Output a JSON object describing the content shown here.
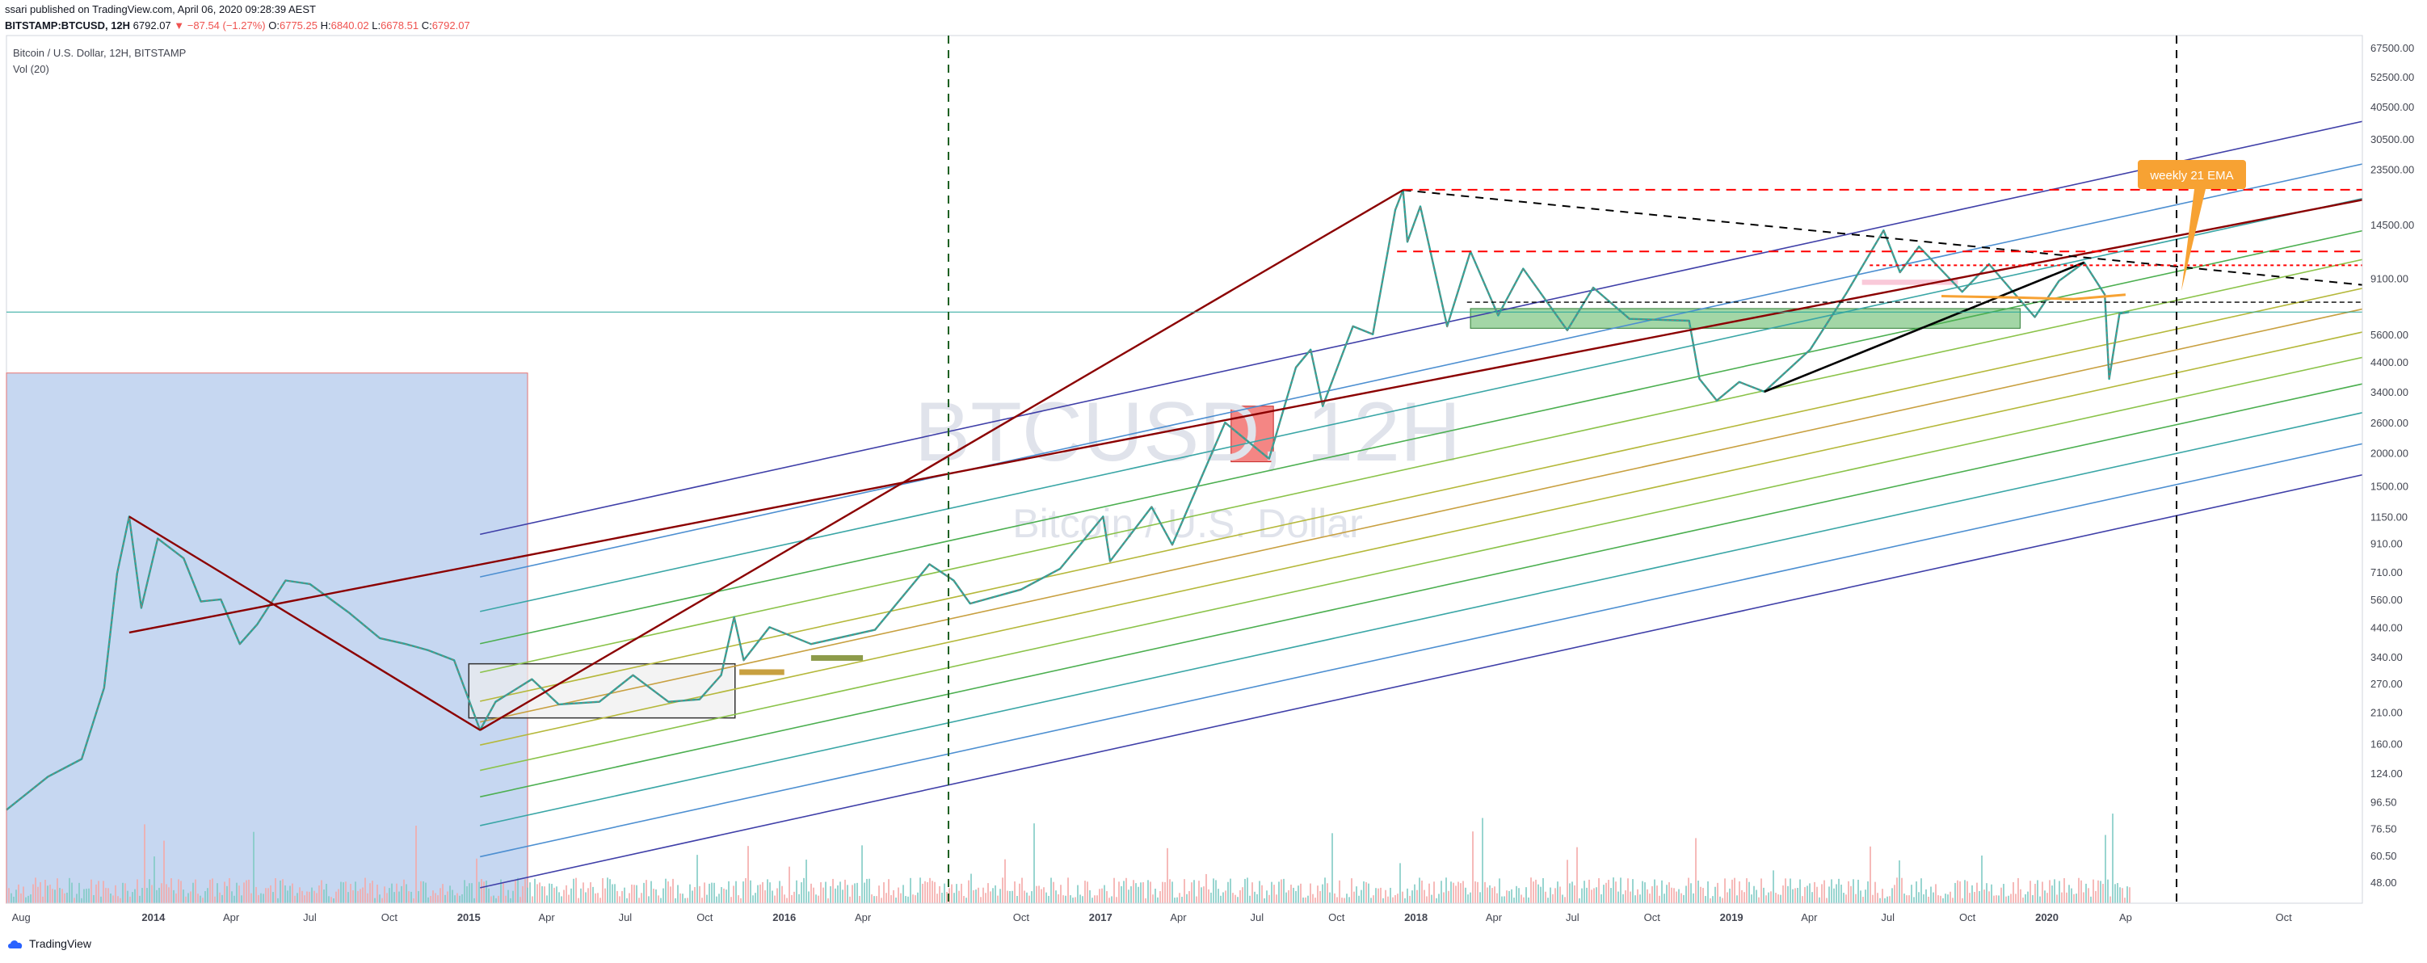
{
  "header": {
    "publish_line": "ssari published on TradingView.com, April 06, 2020 09:28:39 AEST",
    "symbol": "BITSTAMP:BTCUSD, 12H",
    "last": "6792.07",
    "change": "▼ −87.54 (−1.27%)",
    "open_label": "O:",
    "open": "6775.25",
    "high_label": "H:",
    "high": "6840.02",
    "low_label": "L:",
    "low": "6678.51",
    "close_label": "C:",
    "close": "6792.07"
  },
  "legend": {
    "title": "Bitcoin / U.S. Dollar, 12H, BITSTAMP",
    "volume": "Vol (20)"
  },
  "watermark": {
    "symbol": "BTCUSD, 12H",
    "name": "Bitcoin / U.S. Dollar"
  },
  "annotations": {
    "ema_label": "weekly 21 EMA"
  },
  "footer": {
    "brand": "TradingView"
  },
  "colors": {
    "up": "#26a69a",
    "down": "#ef5350",
    "resistance": "#ff0000",
    "trend": "#8b0000",
    "channel_outer": "#3f3fa8",
    "ema": "#f7a233",
    "support_zone": "#4caf50",
    "bear_zone": "#90caf9"
  },
  "chart_data": {
    "type": "candlestick",
    "title": "",
    "y_scale": "log",
    "ylim": [
      40,
      75000
    ],
    "xlim": [
      "2013-07-15",
      "2020-12-31"
    ],
    "y_ticks": [
      48.0,
      60.5,
      76.5,
      96.5,
      124.0,
      160.0,
      210.0,
      270.0,
      340.0,
      440.0,
      560.0,
      710.0,
      910.0,
      1150.0,
      1500.0,
      2000.0,
      2600.0,
      3400.0,
      4400.0,
      5600.0,
      9100.0,
      14500.0,
      23500.0,
      30500.0,
      40500.0,
      52500.0,
      67500.0
    ],
    "y_tick_labels": [
      "48.00",
      "60.50",
      "76.50",
      "96.50",
      "124.00",
      "160.00",
      "210.00",
      "270.00",
      "340.00",
      "440.00",
      "560.00",
      "710.00",
      "910.00",
      "1150.00",
      "1500.00",
      "2000.00",
      "2600.00",
      "3400.00",
      "4400.00",
      "5600.00",
      "9100.00",
      "14500.00",
      "23500.00",
      "30500.00",
      "40500.00",
      "52500.00",
      "67500.00"
    ],
    "x_ticks": [
      {
        "d": "2013-08-01",
        "label": "Aug",
        "bold": false
      },
      {
        "d": "2014-01-01",
        "label": "2014",
        "bold": true
      },
      {
        "d": "2014-04-01",
        "label": "Apr",
        "bold": false
      },
      {
        "d": "2014-07-01",
        "label": "Jul",
        "bold": false
      },
      {
        "d": "2014-10-01",
        "label": "Oct",
        "bold": false
      },
      {
        "d": "2015-01-01",
        "label": "2015",
        "bold": true
      },
      {
        "d": "2015-04-01",
        "label": "Apr",
        "bold": false
      },
      {
        "d": "2015-07-01",
        "label": "Jul",
        "bold": false
      },
      {
        "d": "2015-10-01",
        "label": "Oct",
        "bold": false
      },
      {
        "d": "2016-01-01",
        "label": "2016",
        "bold": true
      },
      {
        "d": "2016-04-01",
        "label": "Apr",
        "bold": false
      },
      {
        "d": "2016-10-01",
        "label": "Oct",
        "bold": false
      },
      {
        "d": "2017-01-01",
        "label": "2017",
        "bold": true
      },
      {
        "d": "2017-04-01",
        "label": "Apr",
        "bold": false
      },
      {
        "d": "2017-07-01",
        "label": "Jul",
        "bold": false
      },
      {
        "d": "2017-10-01",
        "label": "Oct",
        "bold": false
      },
      {
        "d": "2018-01-01",
        "label": "2018",
        "bold": true
      },
      {
        "d": "2018-04-01",
        "label": "Apr",
        "bold": false
      },
      {
        "d": "2018-07-01",
        "label": "Jul",
        "bold": false
      },
      {
        "d": "2018-10-01",
        "label": "Oct",
        "bold": false
      },
      {
        "d": "2019-01-01",
        "label": "2019",
        "bold": true
      },
      {
        "d": "2019-04-01",
        "label": "Apr",
        "bold": false
      },
      {
        "d": "2019-07-01",
        "label": "Jul",
        "bold": false
      },
      {
        "d": "2019-10-01",
        "label": "Oct",
        "bold": false
      },
      {
        "d": "2020-01-01",
        "label": "2020",
        "bold": true
      },
      {
        "d": "2020-04-01",
        "label": "Ap",
        "bold": false
      },
      {
        "d": "2020-10-01",
        "label": "Oct",
        "bold": false
      }
    ],
    "price_path": [
      [
        "2013-07-15",
        90
      ],
      [
        "2013-09-01",
        120
      ],
      [
        "2013-10-10",
        140
      ],
      [
        "2013-11-05",
        260
      ],
      [
        "2013-11-20",
        700
      ],
      [
        "2013-12-04",
        1150
      ],
      [
        "2013-12-18",
        520
      ],
      [
        "2014-01-06",
        950
      ],
      [
        "2014-02-05",
        800
      ],
      [
        "2014-02-25",
        550
      ],
      [
        "2014-03-20",
        560
      ],
      [
        "2014-04-11",
        380
      ],
      [
        "2014-05-01",
        450
      ],
      [
        "2014-06-03",
        660
      ],
      [
        "2014-07-01",
        640
      ],
      [
        "2014-08-15",
        500
      ],
      [
        "2014-09-20",
        400
      ],
      [
        "2014-10-20",
        380
      ],
      [
        "2014-11-15",
        360
      ],
      [
        "2014-12-15",
        330
      ],
      [
        "2015-01-14",
        180
      ],
      [
        "2015-02-01",
        230
      ],
      [
        "2015-03-15",
        280
      ],
      [
        "2015-04-15",
        225
      ],
      [
        "2015-06-01",
        230
      ],
      [
        "2015-07-10",
        290
      ],
      [
        "2015-08-20",
        230
      ],
      [
        "2015-09-25",
        235
      ],
      [
        "2015-10-20",
        290
      ],
      [
        "2015-11-04",
        480
      ],
      [
        "2015-11-15",
        330
      ],
      [
        "2015-12-15",
        440
      ],
      [
        "2016-02-01",
        380
      ],
      [
        "2016-04-15",
        430
      ],
      [
        "2016-06-17",
        760
      ],
      [
        "2016-07-15",
        660
      ],
      [
        "2016-08-03",
        540
      ],
      [
        "2016-10-01",
        610
      ],
      [
        "2016-11-15",
        730
      ],
      [
        "2017-01-04",
        1150
      ],
      [
        "2017-01-12",
        780
      ],
      [
        "2017-03-01",
        1250
      ],
      [
        "2017-03-25",
        900
      ],
      [
        "2017-05-25",
        2600
      ],
      [
        "2017-07-15",
        1900
      ],
      [
        "2017-08-15",
        4200
      ],
      [
        "2017-09-01",
        4900
      ],
      [
        "2017-09-15",
        3000
      ],
      [
        "2017-10-20",
        6000
      ],
      [
        "2017-11-12",
        5600
      ],
      [
        "2017-12-08",
        16500
      ],
      [
        "2017-12-17",
        19600
      ],
      [
        "2017-12-22",
        12500
      ],
      [
        "2018-01-06",
        17000
      ],
      [
        "2018-02-06",
        6000
      ],
      [
        "2018-03-05",
        11500
      ],
      [
        "2018-04-06",
        6600
      ],
      [
        "2018-05-05",
        9900
      ],
      [
        "2018-06-25",
        5800
      ],
      [
        "2018-07-25",
        8400
      ],
      [
        "2018-09-05",
        6400
      ],
      [
        "2018-11-13",
        6300
      ],
      [
        "2018-11-25",
        3800
      ],
      [
        "2018-12-15",
        3150
      ],
      [
        "2019-01-10",
        3700
      ],
      [
        "2019-02-08",
        3400
      ],
      [
        "2019-04-02",
        4900
      ],
      [
        "2019-05-14",
        8000
      ],
      [
        "2019-06-26",
        13800
      ],
      [
        "2019-07-15",
        9600
      ],
      [
        "2019-08-06",
        12000
      ],
      [
        "2019-09-25",
        8100
      ],
      [
        "2019-10-26",
        10300
      ],
      [
        "2019-12-18",
        6500
      ],
      [
        "2020-01-15",
        8900
      ],
      [
        "2020-02-13",
        10450
      ],
      [
        "2020-03-08",
        7900
      ],
      [
        "2020-03-13",
        3800
      ],
      [
        "2020-03-25",
        6700
      ],
      [
        "2020-04-05",
        6792
      ]
    ]
  }
}
